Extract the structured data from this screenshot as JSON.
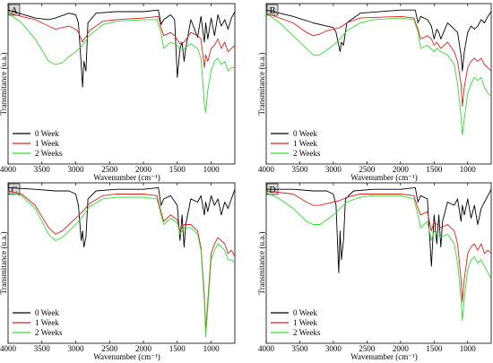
{
  "figure": {
    "panels": [
      "A",
      "B",
      "C",
      "D"
    ]
  },
  "chart_data": [
    {
      "type": "line",
      "panel_label": "A",
      "xlabel": "Wavenumber (cm⁻¹)",
      "ylabel": "Transmitance (u.a.)",
      "x_reversed": true,
      "xlim": [
        4000,
        650
      ],
      "xticks": [
        4000,
        3500,
        3000,
        2500,
        2000,
        1500,
        1000
      ],
      "ylim": [
        0,
        100
      ],
      "legend_position": "bottom-left",
      "colors": {
        "0 Week": "#000000",
        "1 Week": "#e02020",
        "2 Weeks": "#33dd33"
      },
      "series": [
        {
          "name": "0 Week",
          "x": [
            4000,
            3600,
            3400,
            3300,
            3100,
            3000,
            2960,
            2920,
            2900,
            2880,
            2850,
            2820,
            2700,
            2400,
            2000,
            1780,
            1740,
            1700,
            1600,
            1540,
            1500,
            1460,
            1430,
            1400,
            1375,
            1300,
            1200,
            1150,
            1100,
            1080,
            1050,
            1000,
            950,
            900,
            850,
            800,
            750,
            700,
            650
          ],
          "y": [
            96,
            91,
            90,
            91,
            94,
            93,
            88,
            62,
            48,
            64,
            58,
            88,
            94,
            95,
            95,
            96,
            87,
            90,
            93,
            90,
            54,
            72,
            76,
            64,
            72,
            90,
            79,
            92,
            76,
            88,
            78,
            91,
            80,
            93,
            86,
            90,
            84,
            91,
            95
          ]
        },
        {
          "name": "1 Week",
          "x": [
            4000,
            3600,
            3400,
            3300,
            3100,
            3000,
            2960,
            2920,
            2900,
            2880,
            2850,
            2800,
            2600,
            2400,
            2000,
            1780,
            1740,
            1700,
            1600,
            1540,
            1460,
            1400,
            1300,
            1200,
            1150,
            1100,
            1080,
            1050,
            1000,
            950,
            900,
            850,
            800,
            750,
            700,
            650
          ],
          "y": [
            94,
            90,
            86,
            84,
            86,
            84,
            82,
            78,
            76,
            78,
            79,
            83,
            89,
            90,
            91,
            92,
            85,
            80,
            82,
            80,
            75,
            76,
            82,
            80,
            78,
            60,
            68,
            64,
            72,
            74,
            78,
            72,
            76,
            70,
            72,
            74
          ]
        },
        {
          "name": "2 Weeks",
          "x": [
            4000,
            3800,
            3600,
            3400,
            3300,
            3200,
            3100,
            3000,
            2900,
            2800,
            2600,
            2400,
            2000,
            1800,
            1740,
            1700,
            1600,
            1500,
            1460,
            1400,
            1300,
            1200,
            1150,
            1100,
            1080,
            1050,
            1000,
            950,
            900,
            850,
            800,
            750,
            700,
            650
          ],
          "y": [
            94,
            88,
            78,
            64,
            62,
            63,
            67,
            70,
            74,
            80,
            87,
            89,
            90,
            90,
            82,
            72,
            76,
            74,
            71,
            72,
            75,
            72,
            66,
            38,
            32,
            46,
            58,
            64,
            66,
            62,
            64,
            58,
            60,
            60
          ]
        }
      ]
    },
    {
      "type": "line",
      "panel_label": "B",
      "xlabel": "Wavenumber (cm⁻¹)",
      "ylabel": "Transmitance (u.a.)",
      "x_reversed": true,
      "xlim": [
        4000,
        650
      ],
      "xticks": [
        4000,
        3500,
        3000,
        2500,
        2000,
        1500,
        1000
      ],
      "ylim": [
        0,
        100
      ],
      "legend_position": "bottom-left",
      "colors": {
        "0 Week": "#000000",
        "1 Week": "#e02020",
        "2 Weeks": "#33dd33"
      },
      "series": [
        {
          "name": "0 Week",
          "x": [
            4000,
            3600,
            3300,
            3100,
            3000,
            2960,
            2920,
            2900,
            2880,
            2850,
            2800,
            2600,
            2000,
            1780,
            1740,
            1700,
            1600,
            1540,
            1500,
            1460,
            1430,
            1400,
            1300,
            1200,
            1150,
            1100,
            1080,
            1050,
            1000,
            950,
            900,
            850,
            800,
            750,
            700,
            650
          ],
          "y": [
            96,
            92,
            88,
            86,
            85,
            82,
            74,
            70,
            76,
            74,
            88,
            94,
            96,
            96,
            88,
            92,
            90,
            86,
            78,
            84,
            82,
            78,
            88,
            84,
            82,
            68,
            58,
            70,
            82,
            86,
            84,
            86,
            90,
            88,
            92,
            95
          ]
        },
        {
          "name": "1 Week",
          "x": [
            4000,
            3600,
            3400,
            3300,
            3200,
            3100,
            3000,
            2900,
            2800,
            2600,
            2000,
            1800,
            1740,
            1700,
            1600,
            1540,
            1500,
            1460,
            1400,
            1300,
            1200,
            1150,
            1100,
            1080,
            1050,
            1000,
            950,
            900,
            850,
            800,
            750,
            700,
            650
          ],
          "y": [
            94,
            88,
            82,
            80,
            81,
            83,
            84,
            85,
            88,
            91,
            92,
            91,
            84,
            78,
            80,
            78,
            74,
            76,
            72,
            76,
            70,
            64,
            50,
            36,
            48,
            60,
            64,
            66,
            64,
            66,
            62,
            60,
            58
          ]
        },
        {
          "name": "2 Weeks",
          "x": [
            4000,
            3800,
            3600,
            3400,
            3300,
            3200,
            3100,
            3000,
            2900,
            2800,
            2600,
            2400,
            2000,
            1800,
            1740,
            1700,
            1600,
            1500,
            1460,
            1400,
            1300,
            1200,
            1150,
            1100,
            1080,
            1050,
            1000,
            950,
            900,
            850,
            800,
            750,
            700,
            650
          ],
          "y": [
            94,
            88,
            80,
            72,
            68,
            68,
            71,
            74,
            78,
            83,
            88,
            90,
            91,
            90,
            82,
            72,
            74,
            70,
            72,
            70,
            68,
            62,
            50,
            30,
            18,
            28,
            44,
            50,
            54,
            52,
            54,
            48,
            44,
            42
          ]
        }
      ]
    },
    {
      "type": "line",
      "panel_label": "C",
      "xlabel": "Wavenumber (cm⁻¹)",
      "ylabel": "Transmitance (u.a.)",
      "x_reversed": true,
      "xlim": [
        4000,
        650
      ],
      "xticks": [
        4000,
        3500,
        3000,
        2500,
        2000,
        1500,
        1000
      ],
      "ylim": [
        0,
        100
      ],
      "legend_position": "bottom-left",
      "colors": {
        "0 Week": "#000000",
        "1 Week": "#e02020",
        "2 Weeks": "#33dd33"
      },
      "series": [
        {
          "name": "0 Week",
          "x": [
            4000,
            3600,
            3300,
            3100,
            3000,
            2960,
            2920,
            2900,
            2880,
            2850,
            2820,
            2700,
            2400,
            2000,
            1780,
            1740,
            1700,
            1600,
            1500,
            1460,
            1430,
            1400,
            1375,
            1300,
            1200,
            1150,
            1100,
            1080,
            1050,
            1000,
            950,
            900,
            850,
            800,
            750,
            700,
            650
          ],
          "y": [
            97,
            96,
            95,
            95,
            93,
            86,
            64,
            70,
            60,
            66,
            90,
            95,
            96,
            96,
            97,
            86,
            90,
            92,
            86,
            64,
            80,
            60,
            74,
            90,
            88,
            92,
            80,
            88,
            82,
            92,
            86,
            90,
            80,
            88,
            84,
            90,
            96
          ]
        },
        {
          "name": "1 Week",
          "x": [
            4000,
            3800,
            3600,
            3400,
            3300,
            3200,
            3100,
            3000,
            2900,
            2800,
            2600,
            2400,
            2000,
            1800,
            1740,
            1700,
            1600,
            1500,
            1460,
            1400,
            1300,
            1200,
            1150,
            1100,
            1080,
            1050,
            1000,
            950,
            900,
            850,
            800,
            750,
            700,
            650
          ],
          "y": [
            95,
            93,
            86,
            72,
            68,
            70,
            74,
            78,
            82,
            87,
            92,
            93,
            93,
            92,
            82,
            76,
            80,
            77,
            70,
            74,
            74,
            70,
            60,
            30,
            8,
            26,
            56,
            62,
            66,
            64,
            62,
            56,
            58,
            54
          ]
        },
        {
          "name": "2 Weeks",
          "x": [
            4000,
            3800,
            3600,
            3400,
            3300,
            3200,
            3100,
            3000,
            2900,
            2800,
            2600,
            2400,
            2000,
            1800,
            1740,
            1700,
            1600,
            1500,
            1460,
            1400,
            1300,
            1200,
            1150,
            1100,
            1080,
            1050,
            1000,
            950,
            900,
            850,
            800,
            750,
            700,
            650
          ],
          "y": [
            94,
            92,
            84,
            68,
            64,
            66,
            70,
            74,
            79,
            85,
            90,
            91,
            91,
            90,
            80,
            74,
            78,
            75,
            68,
            72,
            72,
            68,
            58,
            26,
            4,
            22,
            52,
            58,
            62,
            60,
            58,
            52,
            52,
            50
          ]
        }
      ]
    },
    {
      "type": "line",
      "panel_label": "D",
      "xlabel": "Wavenumber (cm⁻¹)",
      "ylabel": "Transmitance (u.a.)",
      "x_reversed": true,
      "xlim": [
        4000,
        650
      ],
      "xticks": [
        4000,
        3500,
        3000,
        2500,
        2000,
        1500,
        1000
      ],
      "ylim": [
        0,
        100
      ],
      "legend_position": "bottom-left",
      "colors": {
        "0 Week": "#000000",
        "1 Week": "#e02020",
        "2 Weeks": "#33dd33"
      },
      "series": [
        {
          "name": "0 Week",
          "x": [
            4000,
            3600,
            3300,
            3100,
            3000,
            2960,
            2920,
            2900,
            2880,
            2850,
            2820,
            2700,
            2400,
            2000,
            1780,
            1740,
            1700,
            1600,
            1540,
            1500,
            1460,
            1430,
            1400,
            1375,
            1300,
            1200,
            1150,
            1100,
            1080,
            1050,
            1000,
            950,
            900,
            850,
            800,
            750,
            700,
            650
          ],
          "y": [
            96,
            96,
            95,
            95,
            93,
            86,
            44,
            70,
            52,
            64,
            90,
            95,
            96,
            96,
            97,
            88,
            92,
            90,
            48,
            80,
            62,
            80,
            60,
            76,
            88,
            86,
            90,
            76,
            86,
            80,
            90,
            78,
            86,
            74,
            84,
            88,
            92,
            96
          ]
        },
        {
          "name": "1 Week",
          "x": [
            4000,
            3600,
            3400,
            3300,
            3200,
            3100,
            3000,
            2900,
            2800,
            2600,
            2000,
            1800,
            1740,
            1700,
            1600,
            1540,
            1500,
            1460,
            1400,
            1300,
            1200,
            1150,
            1100,
            1080,
            1050,
            1000,
            950,
            900,
            850,
            800,
            750,
            700,
            650
          ],
          "y": [
            95,
            93,
            88,
            86,
            86,
            87,
            88,
            89,
            91,
            93,
            93,
            92,
            84,
            80,
            82,
            70,
            76,
            74,
            72,
            74,
            70,
            62,
            40,
            26,
            40,
            56,
            60,
            62,
            58,
            62,
            56,
            58,
            56
          ]
        },
        {
          "name": "2 Weeks",
          "x": [
            4000,
            3800,
            3600,
            3400,
            3300,
            3200,
            3100,
            3000,
            2900,
            2800,
            2600,
            2400,
            2000,
            1800,
            1740,
            1700,
            1600,
            1540,
            1500,
            1460,
            1400,
            1300,
            1200,
            1150,
            1100,
            1080,
            1050,
            1000,
            950,
            900,
            850,
            800,
            750,
            700,
            650
          ],
          "y": [
            94,
            90,
            84,
            76,
            74,
            74,
            77,
            80,
            84,
            88,
            91,
            92,
            92,
            90,
            80,
            72,
            76,
            64,
            70,
            68,
            66,
            68,
            62,
            50,
            28,
            14,
            28,
            46,
            52,
            54,
            50,
            52,
            48,
            44,
            40
          ]
        }
      ]
    }
  ]
}
